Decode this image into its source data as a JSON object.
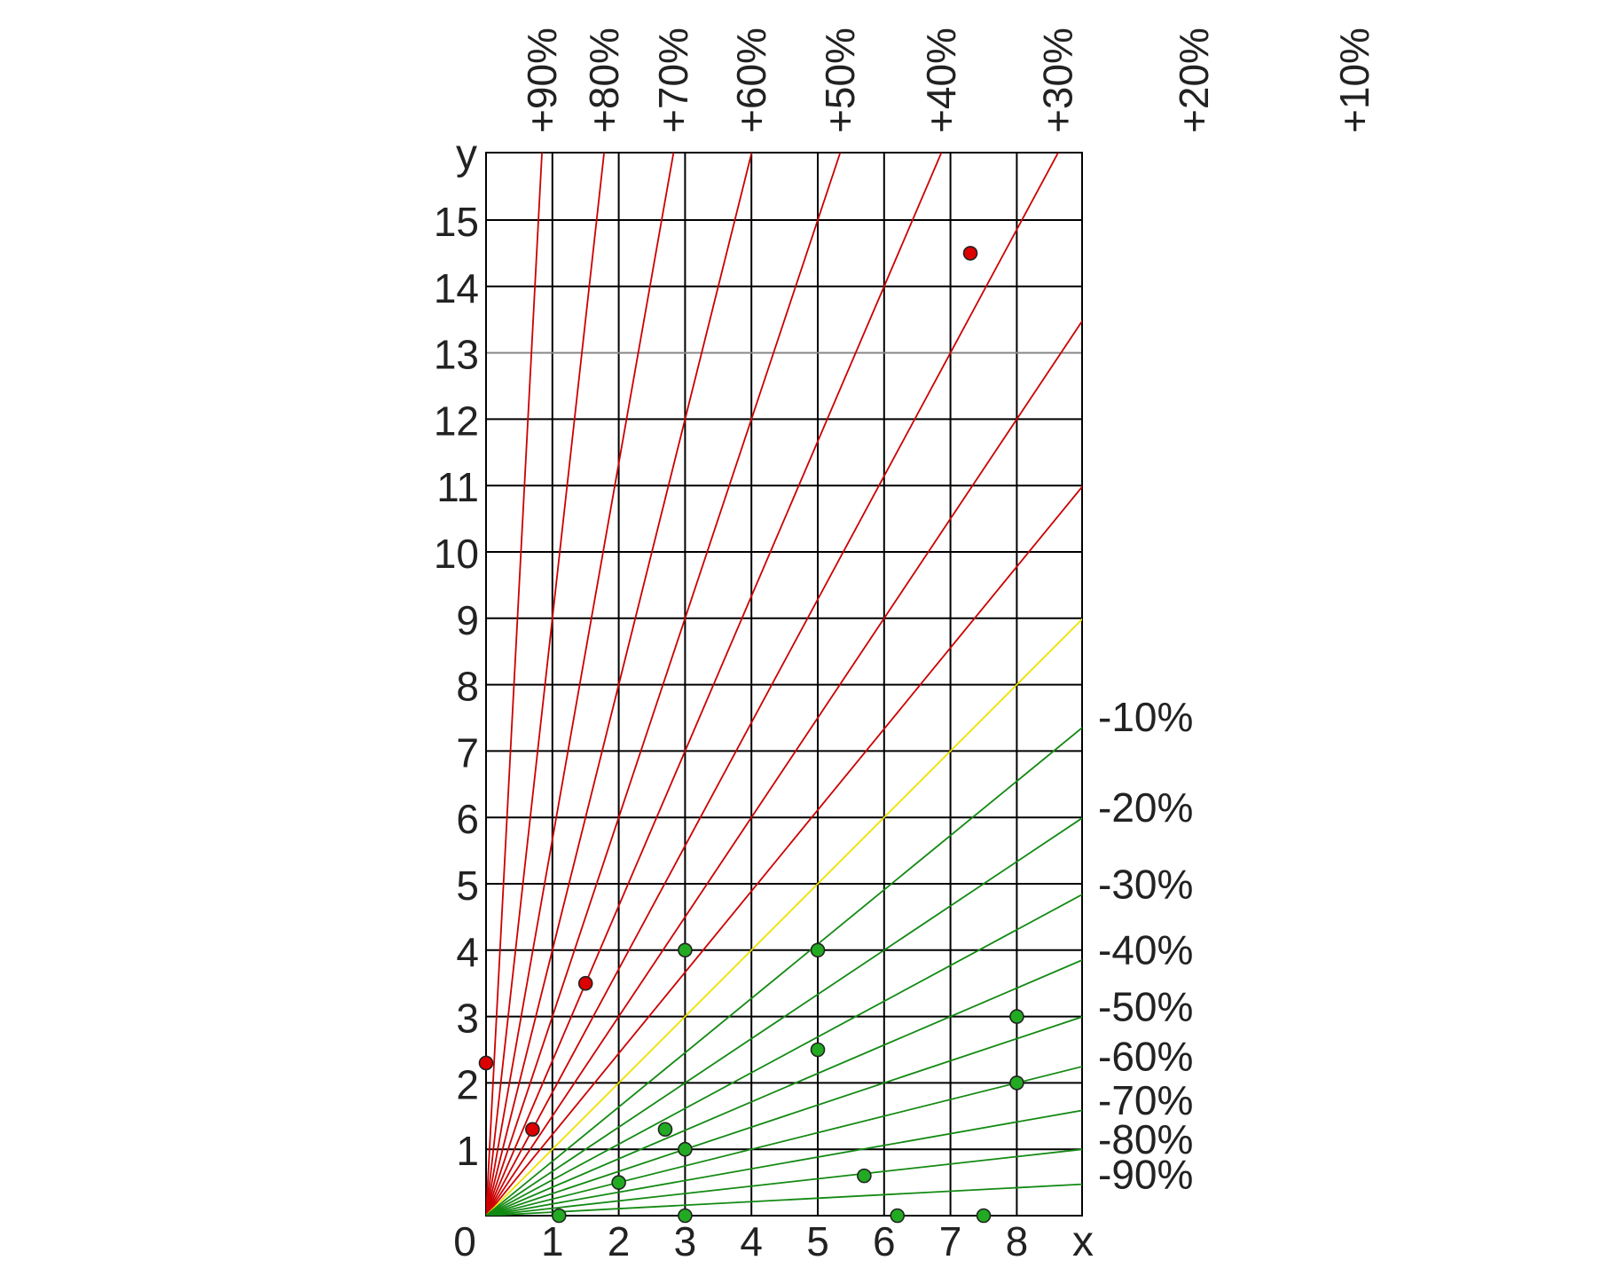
{
  "chart_data": {
    "type": "scatter",
    "xlabel": "x",
    "ylabel": "y",
    "xlim": [
      0,
      9
    ],
    "ylim": [
      0,
      16
    ],
    "x_ticks": [
      "0",
      "1",
      "2",
      "3",
      "4",
      "5",
      "6",
      "7",
      "8"
    ],
    "y_ticks": [
      "1",
      "2",
      "3",
      "4",
      "5",
      "6",
      "7",
      "8",
      "9",
      "10",
      "11",
      "12",
      "13",
      "14",
      "15"
    ],
    "grid": true,
    "reference_lines": {
      "increase": [
        {
          "label": "+90%",
          "pct": 90
        },
        {
          "label": "+80%",
          "pct": 80
        },
        {
          "label": "+70%",
          "pct": 70
        },
        {
          "label": "+60%",
          "pct": 60
        },
        {
          "label": "+50%",
          "pct": 50
        },
        {
          "label": "+40%",
          "pct": 40
        },
        {
          "label": "+30%",
          "pct": 30
        },
        {
          "label": "+20%",
          "pct": 20
        },
        {
          "label": "+10%",
          "pct": 10
        }
      ],
      "equal": {
        "pct": 0
      },
      "decrease": [
        {
          "label": "-10%",
          "pct": -10
        },
        {
          "label": "-20%",
          "pct": -20
        },
        {
          "label": "-30%",
          "pct": -30
        },
        {
          "label": "-40%",
          "pct": -40
        },
        {
          "label": "-50%",
          "pct": -50
        },
        {
          "label": "-60%",
          "pct": -60
        },
        {
          "label": "-70%",
          "pct": -70
        },
        {
          "label": "-80%",
          "pct": -80
        },
        {
          "label": "-90%",
          "pct": -90
        }
      ]
    },
    "series": [
      {
        "color": "#dd0000",
        "points": [
          [
            0,
            2.3
          ],
          [
            0.7,
            1.3
          ],
          [
            1.5,
            3.5
          ],
          [
            7.3,
            14.5
          ]
        ]
      },
      {
        "color": "#22aa22",
        "points": [
          [
            1.1,
            0
          ],
          [
            2.0,
            0.5
          ],
          [
            2.7,
            1.3
          ],
          [
            3.0,
            4.0
          ],
          [
            3.0,
            1.0
          ],
          [
            3.0,
            0
          ],
          [
            5.0,
            4.0
          ],
          [
            5.0,
            2.5
          ],
          [
            5.7,
            0.6
          ],
          [
            6.2,
            0
          ],
          [
            7.5,
            0
          ],
          [
            8.0,
            3.0
          ],
          [
            8.0,
            2.0
          ]
        ]
      }
    ],
    "colors": {
      "increase_line": "#cc0000",
      "equal_line": "#f0e000",
      "decrease_line": "#138a13",
      "grid": "#000000"
    }
  }
}
